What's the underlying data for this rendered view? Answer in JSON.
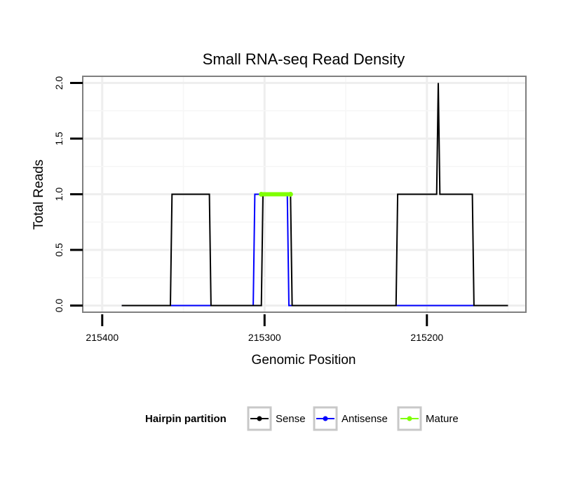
{
  "chart_data": {
    "type": "line",
    "title": "Small RNA-seq Read Density",
    "xlabel": "Genomic Position",
    "ylabel": "Total Reads",
    "xlim": [
      215412,
      215139
    ],
    "ylim": [
      -0.06,
      2.06
    ],
    "x_reversed": true,
    "x_ticks": [
      215400,
      215300,
      215200
    ],
    "x_tick_labels": [
      "215400",
      "215300",
      "215200"
    ],
    "y_ticks": [
      0.0,
      0.5,
      1.0,
      1.5,
      2.0
    ],
    "y_tick_labels": [
      "0.0",
      "0.5",
      "1.0",
      "1.5",
      "2.0"
    ],
    "grid": true,
    "legend": {
      "title": "Hairpin partition",
      "position": "bottom",
      "entries": [
        {
          "name": "Sense",
          "color": "#000000"
        },
        {
          "name": "Antisense",
          "color": "#0000ff"
        },
        {
          "name": "Mature",
          "color": "#7fff00"
        }
      ]
    },
    "series": [
      {
        "name": "Antisense",
        "color": "#0000ff",
        "x": [
          215388,
          215358,
          215357,
          215334,
          215333,
          215307,
          215306,
          215286,
          215285,
          215234,
          215233,
          215172,
          215171,
          215150
        ],
        "values": [
          0,
          0,
          0,
          0,
          0,
          0,
          1,
          1,
          0,
          0,
          0,
          0,
          0,
          0
        ]
      },
      {
        "name": "Sense",
        "color": "#000000",
        "x": [
          215388,
          215358,
          215357,
          215334,
          215333,
          215302,
          215301,
          215284,
          215283,
          215219,
          215218,
          215194,
          215193,
          215192,
          215191,
          215172,
          215171,
          215150
        ],
        "values": [
          0,
          0,
          1,
          1,
          0,
          0,
          1,
          1,
          0,
          0,
          1,
          1,
          2,
          1,
          1,
          1,
          0,
          0
        ]
      },
      {
        "name": "Mature",
        "color": "#7fff00",
        "x": [
          215302,
          215284
        ],
        "values": [
          1,
          1
        ]
      }
    ]
  }
}
